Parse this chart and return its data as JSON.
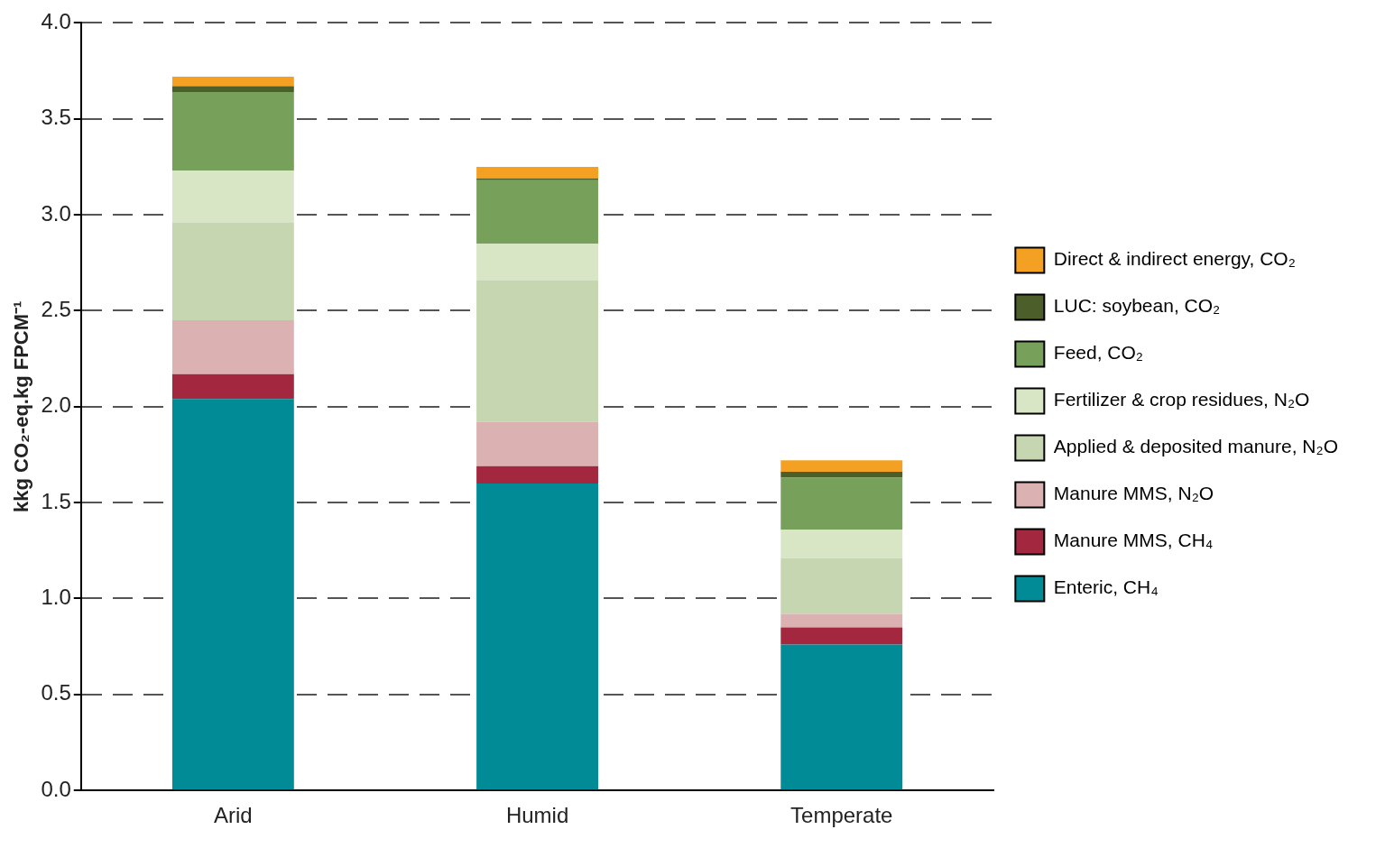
{
  "chart_data": {
    "type": "bar",
    "stacked": true,
    "ylabel": "kkg CO₂-eq.kg FPCM⁻¹",
    "categories": [
      "Arid",
      "Humid",
      "Temperate"
    ],
    "series": [
      {
        "name": "Enteric, CH₄",
        "color": "#008b96",
        "values": [
          2.04,
          1.6,
          0.76
        ]
      },
      {
        "name": "Manure MMS, CH₄",
        "color": "#a3283f",
        "values": [
          0.13,
          0.09,
          0.09
        ]
      },
      {
        "name": "Manure MMS, N₂O",
        "color": "#dbb1b1",
        "values": [
          0.28,
          0.23,
          0.07
        ]
      },
      {
        "name": "Applied & deposited manure, N₂O",
        "color": "#c6d6b0",
        "values": [
          0.51,
          0.74,
          0.29
        ]
      },
      {
        "name": "Fertilizer & crop residues, N₂O",
        "color": "#d8e6c6",
        "values": [
          0.27,
          0.19,
          0.15
        ]
      },
      {
        "name": "Feed, CO₂",
        "color": "#77a05a",
        "values": [
          0.41,
          0.33,
          0.27
        ]
      },
      {
        "name": "LUC: soybean, CO₂",
        "color": "#4c5f2b",
        "values": [
          0.03,
          0.01,
          0.03
        ]
      },
      {
        "name": "Direct & indirect energy, CO₂",
        "color": "#f4a023",
        "values": [
          0.05,
          0.06,
          0.06
        ]
      }
    ],
    "ylim": [
      0,
      4
    ],
    "yticks": [
      {
        "value": 0,
        "label": "0.0"
      },
      {
        "value": 0.5,
        "label": "0.5"
      },
      {
        "value": 1,
        "label": "1.0"
      },
      {
        "value": 1.5,
        "label": "1.5"
      },
      {
        "value": 2,
        "label": "2.0"
      },
      {
        "value": 2.5,
        "label": "2.5"
      },
      {
        "value": 3,
        "label": "3.0"
      },
      {
        "value": 3.5,
        "label": "3.5"
      },
      {
        "value": 4,
        "label": "4.0"
      }
    ],
    "grid": "y",
    "legend": "right"
  }
}
